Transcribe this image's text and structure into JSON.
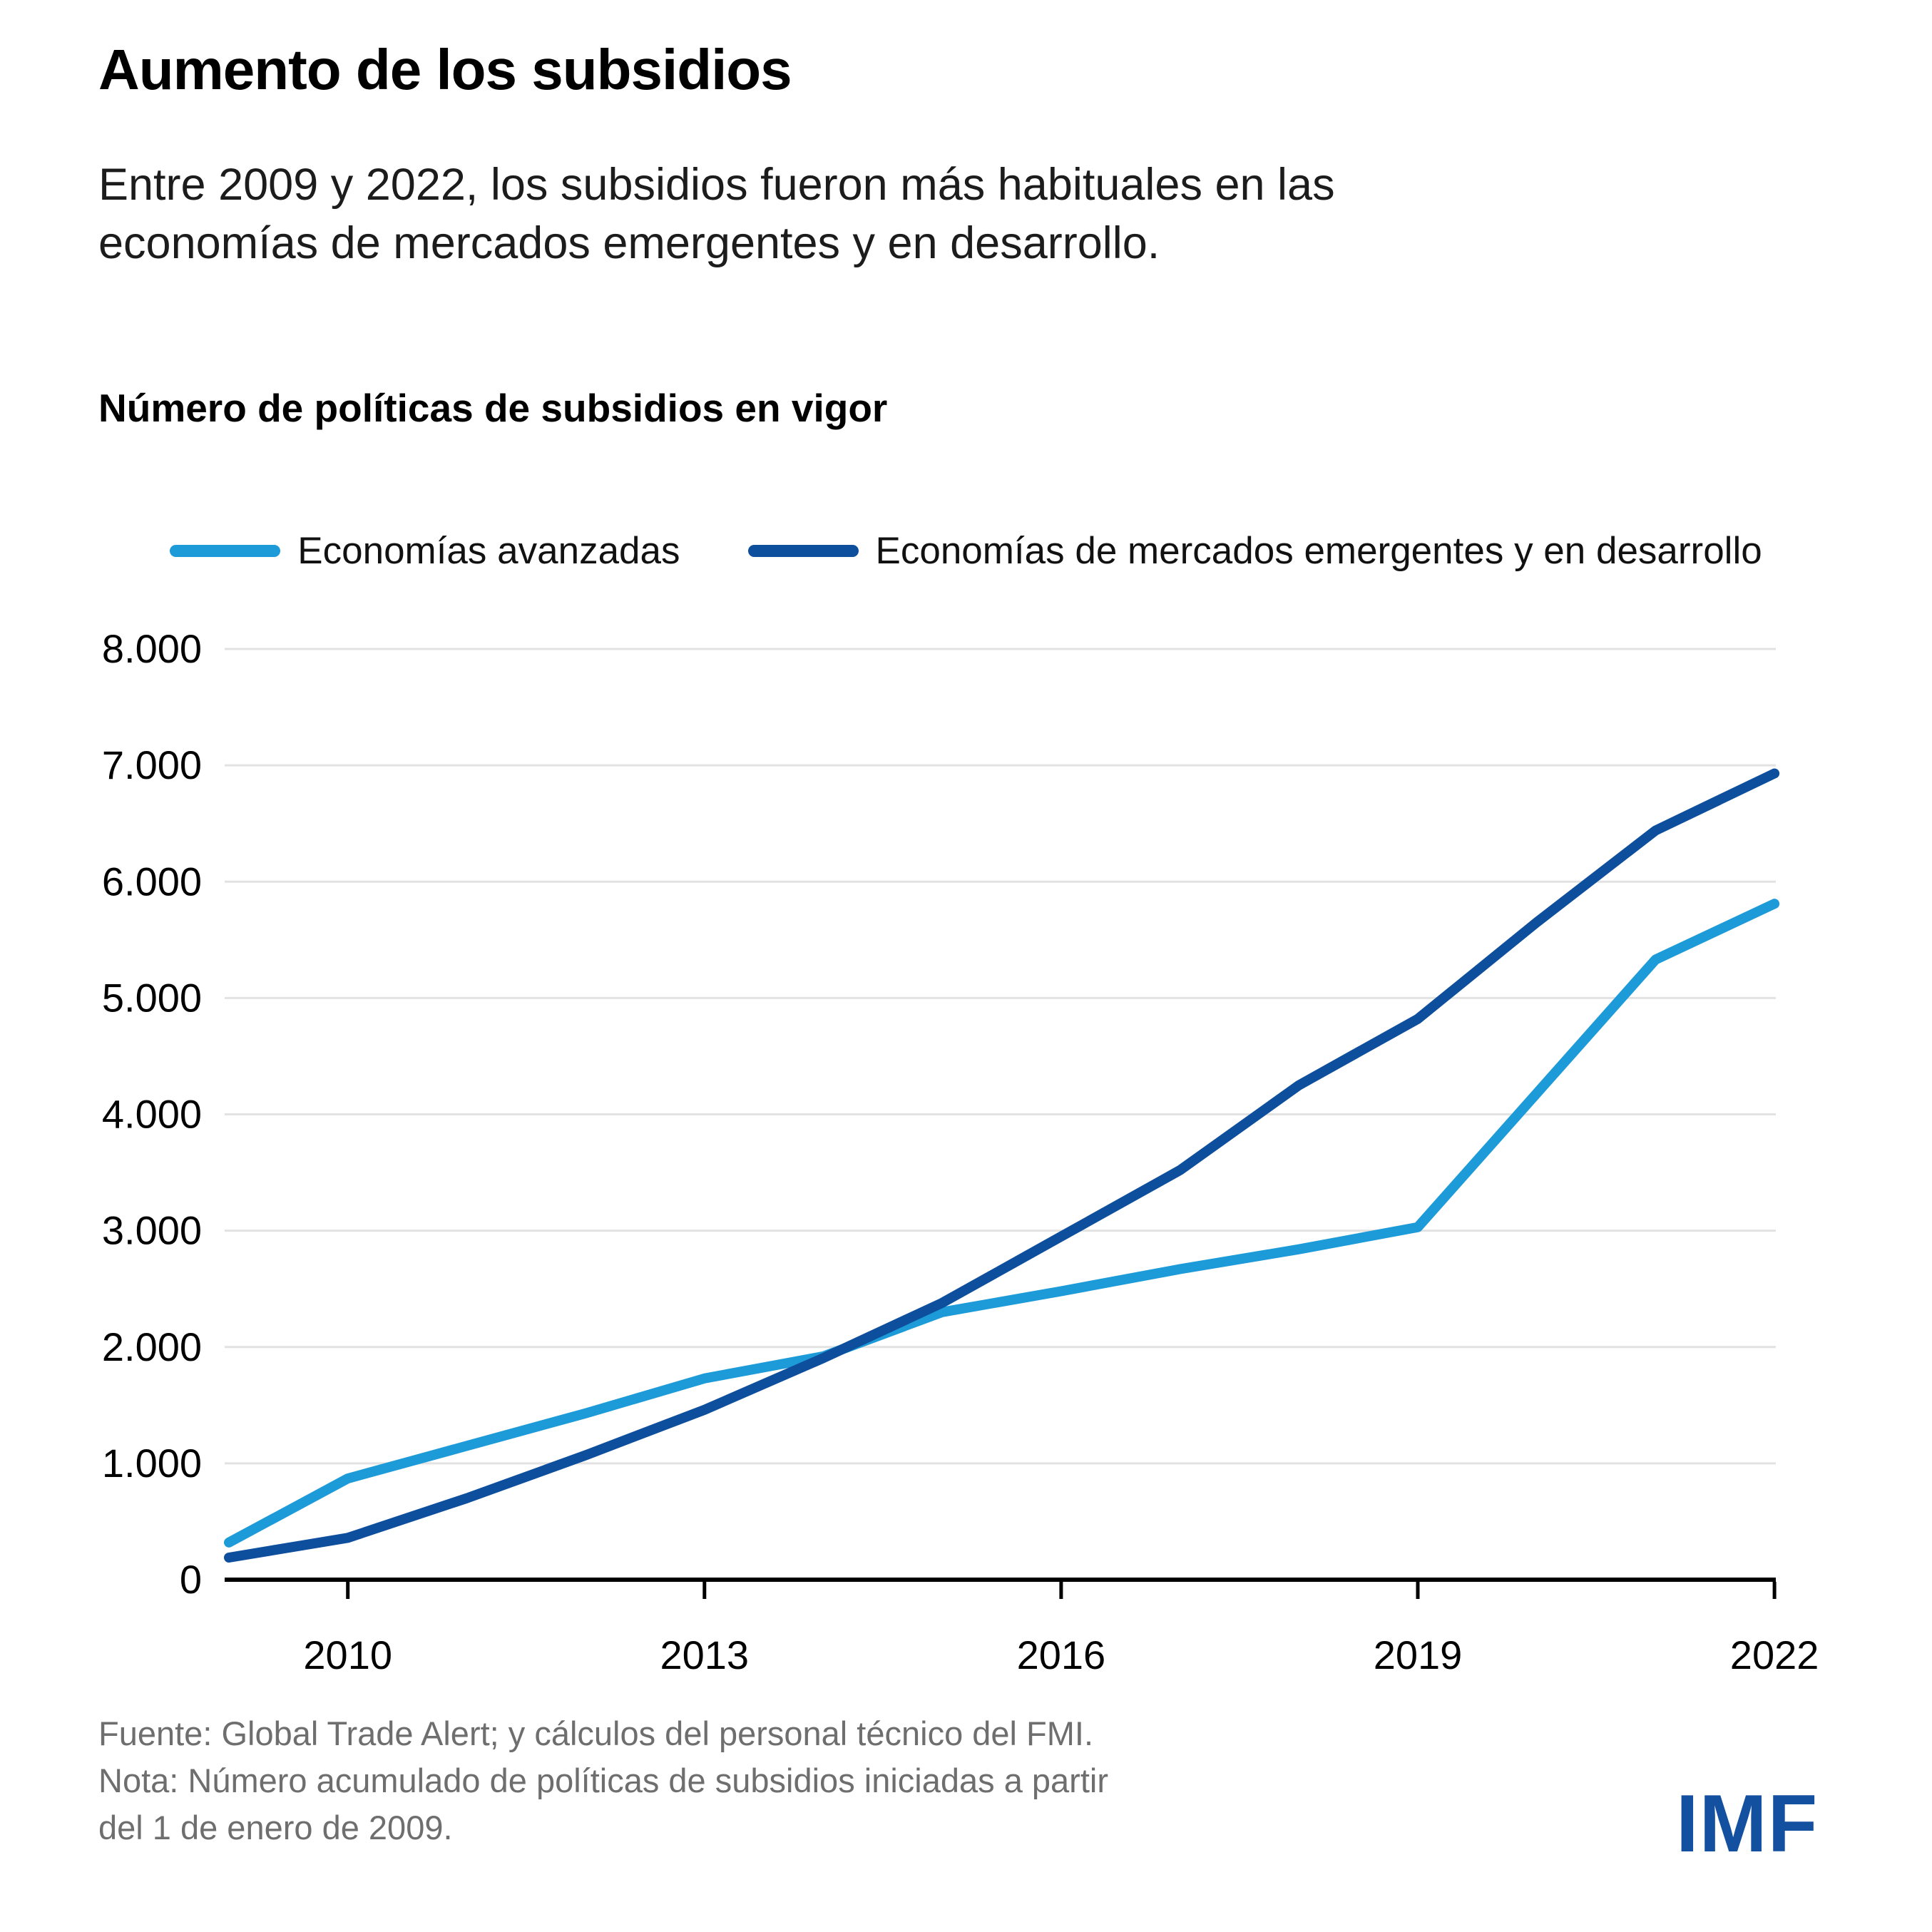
{
  "header": {
    "title": "Aumento de los subsidios",
    "subtitle_lines": [
      "Entre 2009 y 2022, los subsidios fueron más habituales en las",
      "economías de mercados emergentes y en desarrollo."
    ]
  },
  "chart": {
    "heading": "Número de políticas de subsidios en vigor"
  },
  "chart_data": {
    "type": "line",
    "title": "Número de políticas de subsidios en vigor",
    "x": [
      2009,
      2010,
      2011,
      2012,
      2013,
      2014,
      2015,
      2016,
      2017,
      2018,
      2019,
      2020,
      2021,
      2022
    ],
    "series": [
      {
        "name": "Economías avanzadas",
        "color": "#1d9bd8",
        "values": [
          320,
          870,
          1150,
          1430,
          1730,
          1920,
          2300,
          2480,
          2670,
          2840,
          3030,
          4180,
          5330,
          5810
        ]
      },
      {
        "name": "Economías de mercados emergentes y en desarrollo",
        "color": "#0e4f9d",
        "values": [
          190,
          360,
          700,
          1070,
          1460,
          1905,
          2380,
          2950,
          3520,
          4250,
          4820,
          5650,
          6440,
          6930
        ]
      }
    ],
    "xticks": [
      {
        "v": 2010,
        "label": "2010"
      },
      {
        "v": 2013,
        "label": "2013"
      },
      {
        "v": 2016,
        "label": "2016"
      },
      {
        "v": 2019,
        "label": "2019"
      },
      {
        "v": 2022,
        "label": "2022"
      }
    ],
    "yticks": [
      {
        "v": 0,
        "label": "0"
      },
      {
        "v": 1000,
        "label": "1.000"
      },
      {
        "v": 2000,
        "label": "2.000"
      },
      {
        "v": 3000,
        "label": "3.000"
      },
      {
        "v": 4000,
        "label": "4.000"
      },
      {
        "v": 5000,
        "label": "5.000"
      },
      {
        "v": 6000,
        "label": "6.000"
      },
      {
        "v": 7000,
        "label": "7.000"
      },
      {
        "v": 8000,
        "label": "8.000"
      }
    ],
    "ylim": [
      0,
      8000
    ],
    "xlabel": "",
    "ylabel": "",
    "grid": true,
    "legend_position": "top"
  },
  "colors": {
    "advanced": "#1d9bd8",
    "emde": "#0e4f9d",
    "gridline": "#e2e2e2",
    "axis": "#000000",
    "footer_text": "#6e6e6e",
    "logo_blue": "#1450a0"
  },
  "footer": {
    "lines": [
      "Fuente: Global Trade Alert; y cálculos del personal técnico del FMI.",
      "Nota: Número acumulado de políticas de subsidios iniciadas a partir",
      "del 1 de enero de 2009."
    ],
    "logo": "IMF"
  }
}
